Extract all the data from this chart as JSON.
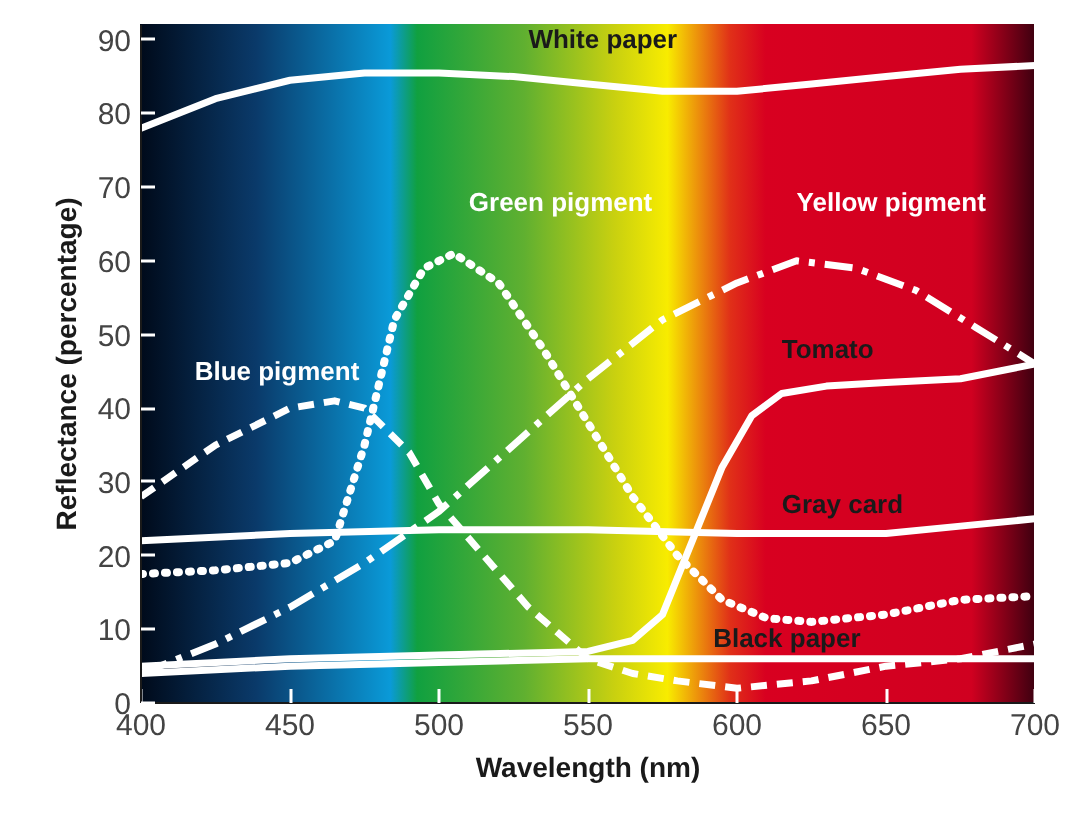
{
  "chart_data": {
    "type": "line",
    "xlabel": "Wavelength (nm)",
    "ylabel": "Reflectance (percentage)",
    "xlim": [
      400,
      700
    ],
    "xticks": [
      400,
      450,
      500,
      550,
      600,
      650,
      700
    ],
    "ylim": [
      0,
      92
    ],
    "yticks": [
      0,
      10,
      20,
      30,
      40,
      50,
      60,
      70,
      80,
      90
    ],
    "grid": false,
    "series": [
      {
        "name": "White paper",
        "color": "#ffffff",
        "line_style": "solid",
        "x": [
          400,
          425,
          450,
          475,
          500,
          525,
          550,
          575,
          600,
          625,
          650,
          675,
          700
        ],
        "values": [
          78,
          82,
          84.5,
          85.5,
          85.5,
          85,
          84,
          83,
          83,
          84,
          85,
          86,
          86.5
        ]
      },
      {
        "name": "Blue pigment",
        "color": "#ffffff",
        "line_style": "dashed",
        "x": [
          400,
          425,
          450,
          465,
          475,
          490,
          500,
          515,
          530,
          550,
          565,
          580,
          600,
          625,
          650,
          675,
          700
        ],
        "values": [
          28,
          35,
          40,
          41,
          40,
          34,
          27,
          20,
          13,
          6,
          4,
          3,
          2,
          3,
          5,
          6,
          8
        ]
      },
      {
        "name": "Green pigment",
        "color": "#ffffff",
        "line_style": "dotted",
        "x": [
          400,
          425,
          450,
          465,
          475,
          485,
          495,
          505,
          520,
          535,
          550,
          565,
          580,
          595,
          610,
          625,
          650,
          675,
          700
        ],
        "values": [
          17.5,
          18,
          19,
          22,
          35,
          52,
          59,
          61,
          57,
          48,
          38,
          28,
          20,
          14,
          11.5,
          11,
          12,
          14,
          14.5
        ]
      },
      {
        "name": "Yellow pigment",
        "color": "#ffffff",
        "line_style": "dashdot",
        "x": [
          400,
          425,
          450,
          475,
          500,
          525,
          550,
          575,
          600,
          620,
          640,
          660,
          680,
          700
        ],
        "values": [
          4,
          8,
          13,
          19,
          26,
          35,
          44,
          52,
          57,
          60,
          59,
          56,
          51,
          46
        ]
      },
      {
        "name": "Tomato",
        "color": "#ffffff",
        "line_style": "solid",
        "x": [
          400,
          450,
          500,
          550,
          565,
          575,
          585,
          595,
          605,
          615,
          630,
          650,
          675,
          700
        ],
        "values": [
          5,
          6,
          6.5,
          7,
          8.5,
          12,
          22,
          32,
          39,
          42,
          43,
          43.5,
          44,
          46
        ]
      },
      {
        "name": "Gray card",
        "color": "#ffffff",
        "line_style": "solid",
        "x": [
          400,
          450,
          500,
          550,
          600,
          650,
          675,
          700
        ],
        "values": [
          22,
          23,
          23.5,
          23.5,
          23,
          23,
          24,
          25
        ]
      },
      {
        "name": "Black paper",
        "color": "#ffffff",
        "line_style": "solid",
        "x": [
          400,
          450,
          500,
          550,
          600,
          650,
          700
        ],
        "values": [
          4,
          5,
          5.5,
          6,
          6,
          6,
          6
        ]
      }
    ]
  }
}
